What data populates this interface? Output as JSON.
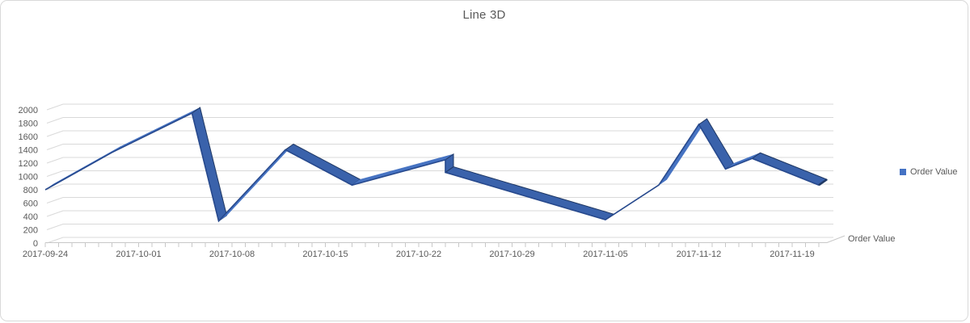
{
  "card": {
    "title": "Line 3D"
  },
  "legend": {
    "label": "Order Value"
  },
  "chart_data": {
    "type": "line",
    "variant": "3d-ribbon",
    "title": "Line 3D",
    "series": [
      {
        "name": "Order Value",
        "x": [
          "2017-09-24",
          "2017-09-29",
          "2017-10-05",
          "2017-10-07",
          "2017-10-12",
          "2017-10-17",
          "2017-10-24",
          "2017-10-24",
          "2017-11-05",
          "2017-11-09",
          "2017-11-12",
          "2017-11-14",
          "2017-11-16",
          "2017-11-21"
        ],
        "values": [
          800,
          1360,
          1950,
          330,
          1400,
          870,
          1250,
          1060,
          350,
          870,
          1780,
          1110,
          1270,
          870
        ]
      }
    ],
    "x_axis": {
      "start": "2017-09-24",
      "tick_labels": [
        "2017-09-24",
        "2017-10-01",
        "2017-10-08",
        "2017-10-15",
        "2017-10-22",
        "2017-10-29",
        "2017-11-05",
        "2017-11-12",
        "2017-11-19"
      ]
    },
    "y_axis": {
      "min": 0,
      "max": 2000,
      "ticks": [
        0,
        200,
        400,
        600,
        800,
        1000,
        1200,
        1400,
        1600,
        1800,
        2000
      ]
    },
    "depth_axis_label": "Order Value",
    "legend_position": "right",
    "grid": true,
    "colors": {
      "ribbon_top": "#4673C2",
      "ribbon_side": "#3A62AB",
      "ribbon_edge": "#27498D",
      "ribbon_cap": "#1F3864",
      "legend_marker": "#4472C4",
      "gridline": "#D9D9D9",
      "axis": "#C8C8C8",
      "text": "#595959"
    }
  }
}
